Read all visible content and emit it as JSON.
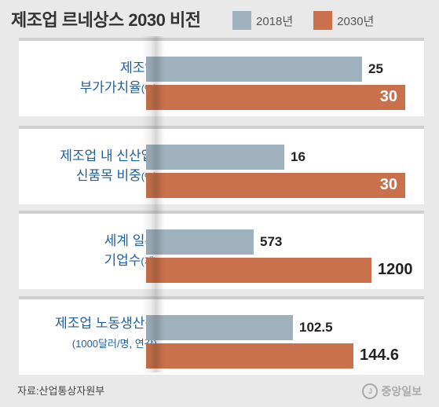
{
  "title": "제조업 르네상스 2030 비전",
  "legend": [
    {
      "label": "2018년",
      "color": "#9fb1bc"
    },
    {
      "label": "2030년",
      "color": "#c8714c"
    }
  ],
  "chart_data": {
    "type": "bar",
    "orientation": "horizontal",
    "title": "제조업 르네상스 2030 비전",
    "categories": [
      {
        "line1": "제조업",
        "line2": "부가가치율",
        "unit": "(%)"
      },
      {
        "line1": "제조업 내 신산업,",
        "line2": "신품목 비중",
        "unit": "(%)"
      },
      {
        "line1": "세계 일류",
        "line2": "기업수",
        "unit": "(개)"
      },
      {
        "line1": "제조업 노동생산성",
        "line2": "",
        "unit": "(1000달러/명, 연간)"
      }
    ],
    "series": [
      {
        "name": "2018년",
        "color": "#9fb1bc",
        "values": [
          "25",
          "16",
          "573",
          "102.5"
        ]
      },
      {
        "name": "2030년",
        "color": "#c8714c",
        "values": [
          "30",
          "30",
          "1200",
          "144.6"
        ]
      }
    ],
    "label_inside_2030": [
      true,
      true,
      false,
      false
    ],
    "scale": "per-category"
  },
  "source": "자료:산업통상자원부",
  "logo": "중앙일보"
}
